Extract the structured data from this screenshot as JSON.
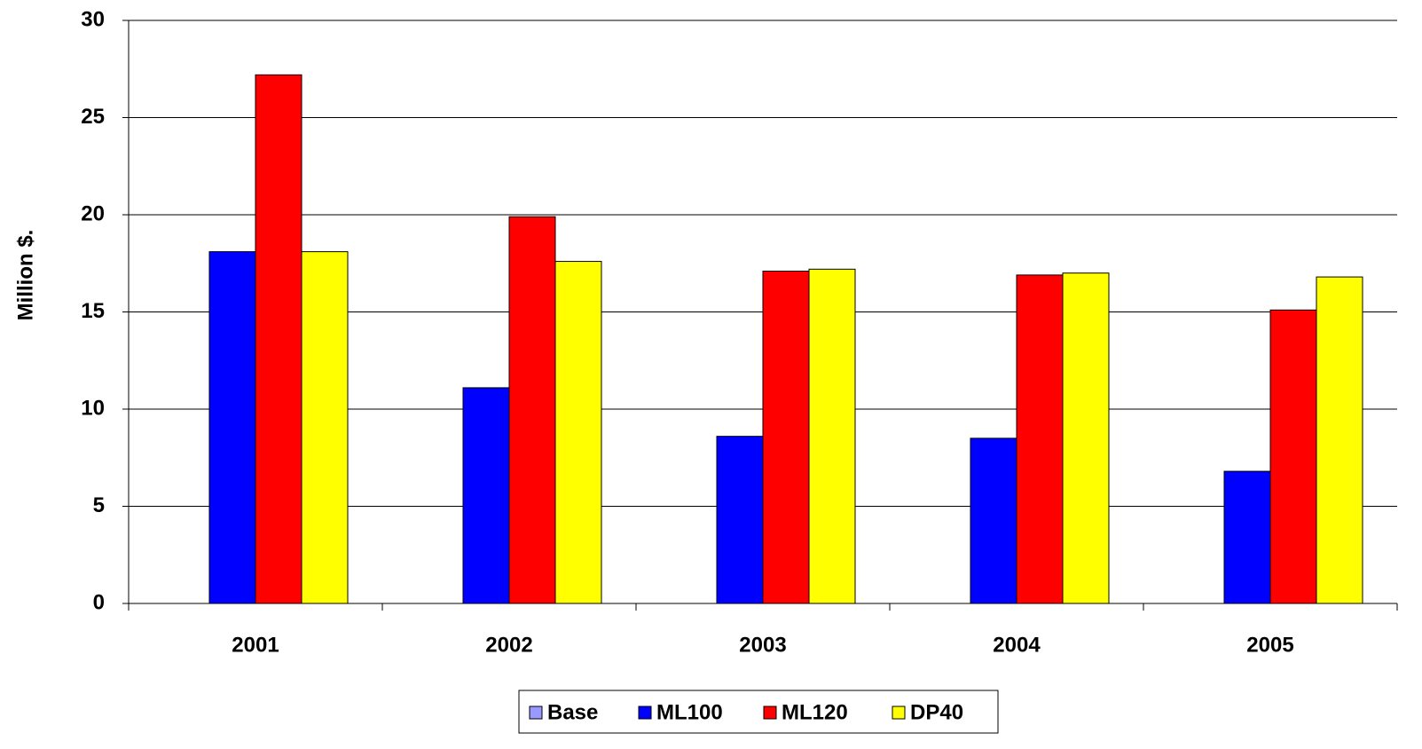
{
  "chart_data": {
    "type": "bar",
    "y_label": "Million $.",
    "categories": [
      "2001",
      "2002",
      "2003",
      "2004",
      "2005"
    ],
    "series": [
      {
        "name": "Base",
        "color": "#9999ff",
        "values": [
          0,
          0,
          0,
          0,
          0
        ]
      },
      {
        "name": "ML100",
        "color": "#0000ff",
        "values": [
          18.1,
          11.1,
          8.6,
          8.5,
          6.8
        ]
      },
      {
        "name": "ML120",
        "color": "#ff0000",
        "values": [
          27.2,
          19.9,
          17.1,
          16.9,
          15.1
        ]
      },
      {
        "name": "DP40",
        "color": "#ffff00",
        "values": [
          18.1,
          17.6,
          17.2,
          17.0,
          16.8
        ]
      }
    ],
    "ylim": [
      0,
      30
    ],
    "yticks": [
      0,
      5,
      10,
      15,
      20,
      25,
      30
    ],
    "grid": true,
    "legend": "bottom"
  }
}
